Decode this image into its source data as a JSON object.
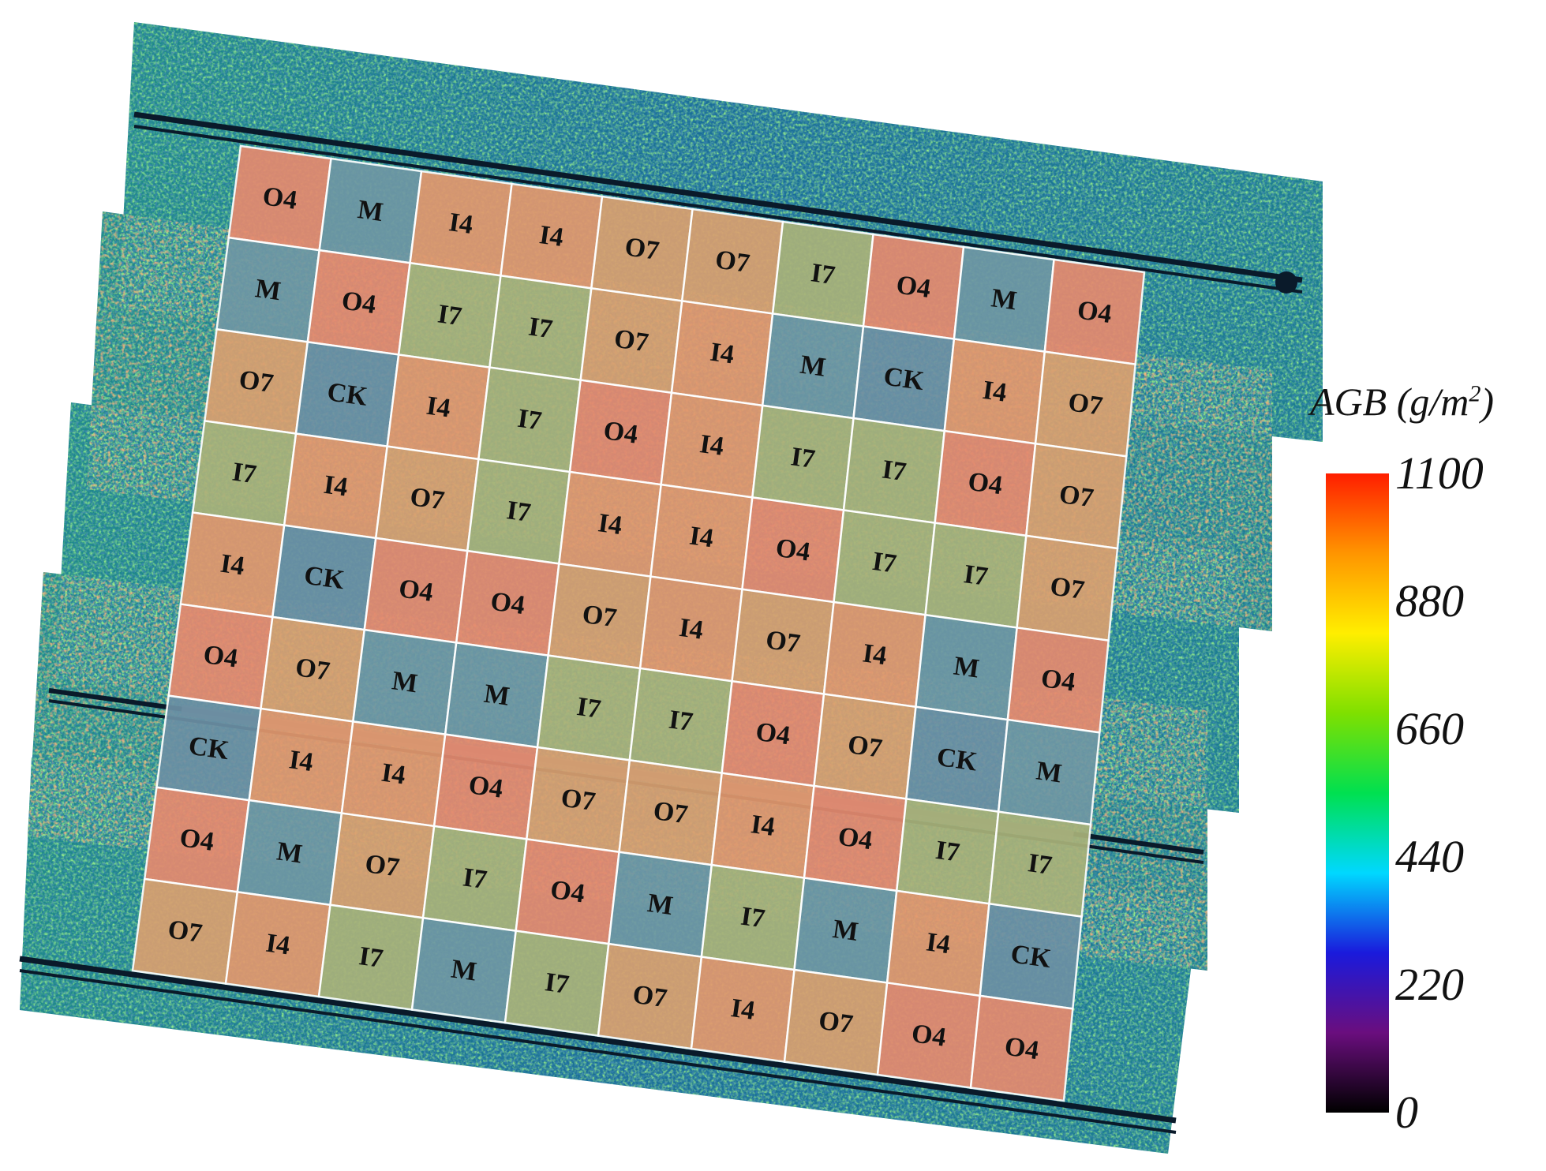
{
  "map": {
    "grid_rows": [
      [
        "O4",
        "M",
        "I4",
        "I4",
        "O7",
        "O7",
        "I7",
        "O4",
        "M",
        "O4"
      ],
      [
        "M",
        "O4",
        "I7",
        "I7",
        "O7",
        "I4",
        "M",
        "CK",
        "I4",
        "O7"
      ],
      [
        "O7",
        "CK",
        "I4",
        "I7",
        "O4",
        "I4",
        "I7",
        "I7",
        "O4",
        "O7"
      ],
      [
        "I7",
        "I4",
        "O7",
        "I7",
        "I4",
        "I4",
        "O4",
        "I7",
        "I7",
        "O7"
      ],
      [
        "I4",
        "CK",
        "O4",
        "O4",
        "O7",
        "I4",
        "O7",
        "I4",
        "M",
        "O4"
      ],
      [
        "O4",
        "O7",
        "M",
        "M",
        "I7",
        "I7",
        "O4",
        "O7",
        "CK",
        "M"
      ],
      [
        "CK",
        "I4",
        "I4",
        "O4",
        "O7",
        "O7",
        "I4",
        "O4",
        "I7",
        "I7"
      ],
      [
        "O4",
        "M",
        "O7",
        "I7",
        "O4",
        "M",
        "I7",
        "M",
        "I4",
        "CK"
      ],
      [
        "O7",
        "I4",
        "I7",
        "M",
        "I7",
        "O7",
        "I4",
        "O7",
        "O4",
        "O4"
      ]
    ],
    "treatment_colors": {
      "O4": "#e58a6f",
      "O7": "#d9a070",
      "I4": "#e2986e",
      "I7": "#a9b27a",
      "M": "#6f97a4",
      "CK": "#6c90a4"
    },
    "background_colors": [
      "#1b5a95",
      "#1c8a9a",
      "#21b06a",
      "#2aa64a",
      "#0d3580",
      "#35c25a"
    ]
  },
  "legend": {
    "title_main": "AGB (g/m",
    "title_sup": "2",
    "title_close": ")",
    "ticks": [
      "1100",
      "880",
      "660",
      "440",
      "220",
      "0"
    ],
    "colormap": [
      "#000000",
      "#6a0e7e",
      "#1a1adc",
      "#00d8ff",
      "#00e050",
      "#7fe000",
      "#ffee00",
      "#ff9500",
      "#ff1e00"
    ]
  }
}
